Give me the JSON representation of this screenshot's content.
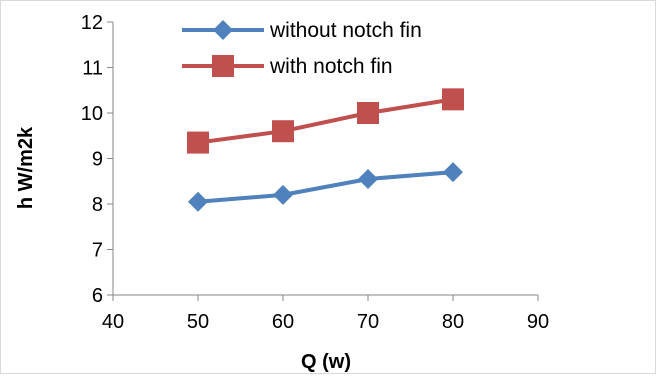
{
  "chart_data": {
    "type": "line",
    "title": "",
    "xlabel": "Q (w)",
    "ylabel": "h W/m2k",
    "xlim": [
      40,
      90
    ],
    "ylim": [
      6,
      12
    ],
    "x_ticks": [
      40,
      50,
      60,
      70,
      80,
      90
    ],
    "y_ticks": [
      6,
      7,
      8,
      9,
      10,
      11,
      12
    ],
    "grid": false,
    "legend_position": "top",
    "series": [
      {
        "name": "without notch  fin",
        "color": "#4f81bd",
        "marker": "diamond",
        "x": [
          50,
          60,
          70,
          80
        ],
        "y": [
          8.05,
          8.2,
          8.55,
          8.7
        ]
      },
      {
        "name": "with notch fin",
        "color": "#c0504d",
        "marker": "square",
        "x": [
          50,
          60,
          70,
          80
        ],
        "y": [
          9.35,
          9.6,
          10.0,
          10.3
        ]
      }
    ]
  }
}
